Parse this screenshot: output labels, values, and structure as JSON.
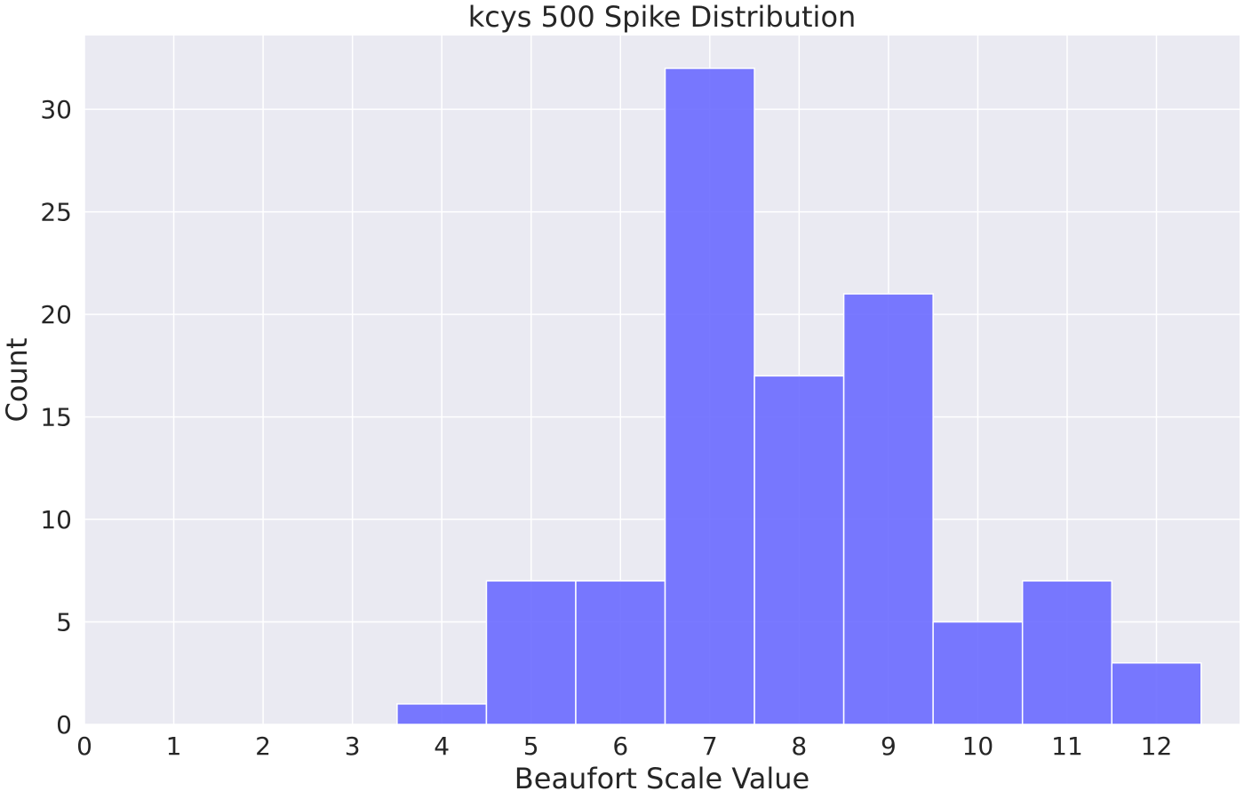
{
  "chart_data": {
    "type": "bar",
    "title": "kcys 500 Spike Distribution",
    "xlabel": "Beaufort Scale Value",
    "ylabel": "Count",
    "categories": [
      4,
      5,
      6,
      7,
      8,
      9,
      10,
      11,
      12
    ],
    "values": [
      1,
      7,
      7,
      32,
      17,
      21,
      5,
      7,
      3
    ],
    "bin_width": 1,
    "xlim": [
      0,
      12.93
    ],
    "ylim": [
      0,
      33.6
    ],
    "xticks": [
      0,
      1,
      2,
      3,
      4,
      5,
      6,
      7,
      8,
      9,
      10,
      11,
      12
    ],
    "yticks": [
      0,
      5,
      10,
      15,
      20,
      25,
      30
    ],
    "grid": true,
    "colors": {
      "bar": "#6666ff",
      "bar_edge": "#ffffff",
      "plot_background": "#eaeaf2",
      "grid": "#ffffff"
    }
  }
}
